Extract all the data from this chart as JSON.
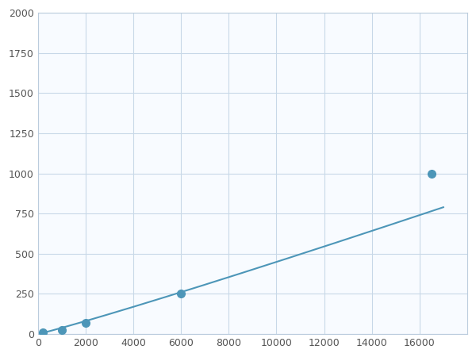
{
  "x_data": [
    200,
    1000,
    2000,
    6000,
    16500
  ],
  "y_data": [
    10,
    25,
    70,
    250,
    1000
  ],
  "line_color": "#4d96b8",
  "marker_color": "#4d96b8",
  "marker_size": 7,
  "line_width": 1.5,
  "xlim": [
    0,
    18000
  ],
  "ylim": [
    0,
    2000
  ],
  "xticks": [
    0,
    2000,
    4000,
    6000,
    8000,
    10000,
    12000,
    14000,
    16000
  ],
  "yticks": [
    0,
    250,
    500,
    750,
    1000,
    1250,
    1500,
    1750,
    2000
  ],
  "grid_color": "#c8d8e8",
  "background_color": "#f8fbff",
  "fig_bg_color": "#ffffff",
  "tick_labelsize": 9,
  "tick_color": "#555555"
}
